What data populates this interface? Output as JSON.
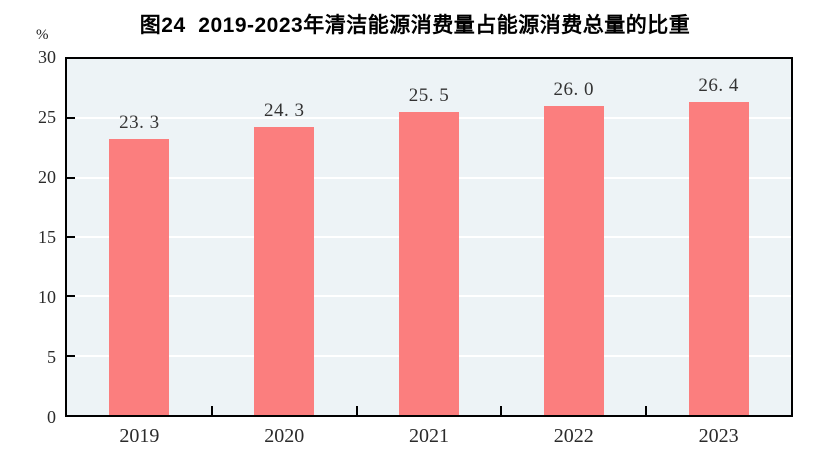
{
  "chart_data": {
    "type": "bar",
    "title": "图24  2019-2023年清洁能源消费量占能源消费总量的比重",
    "unit_label": "%",
    "categories": [
      "2019",
      "2020",
      "2021",
      "2022",
      "2023"
    ],
    "values": [
      23.3,
      24.3,
      25.5,
      26.0,
      26.4
    ],
    "value_labels": [
      "23. 3",
      "24. 3",
      "25. 5",
      "26. 0",
      "26. 4"
    ],
    "ylim": [
      0,
      30
    ],
    "yticks": [
      0,
      5,
      10,
      15,
      20,
      25,
      30
    ],
    "xlabel": "",
    "ylabel": "%",
    "grid": true,
    "legend": "none",
    "colors": {
      "bar": "#fb7e7e",
      "plot_background": "#edf3f6",
      "gridline": "#ffffff",
      "axis_frame": "#000000",
      "tick_mark": "#000000",
      "text": "#2b2b2b"
    }
  }
}
